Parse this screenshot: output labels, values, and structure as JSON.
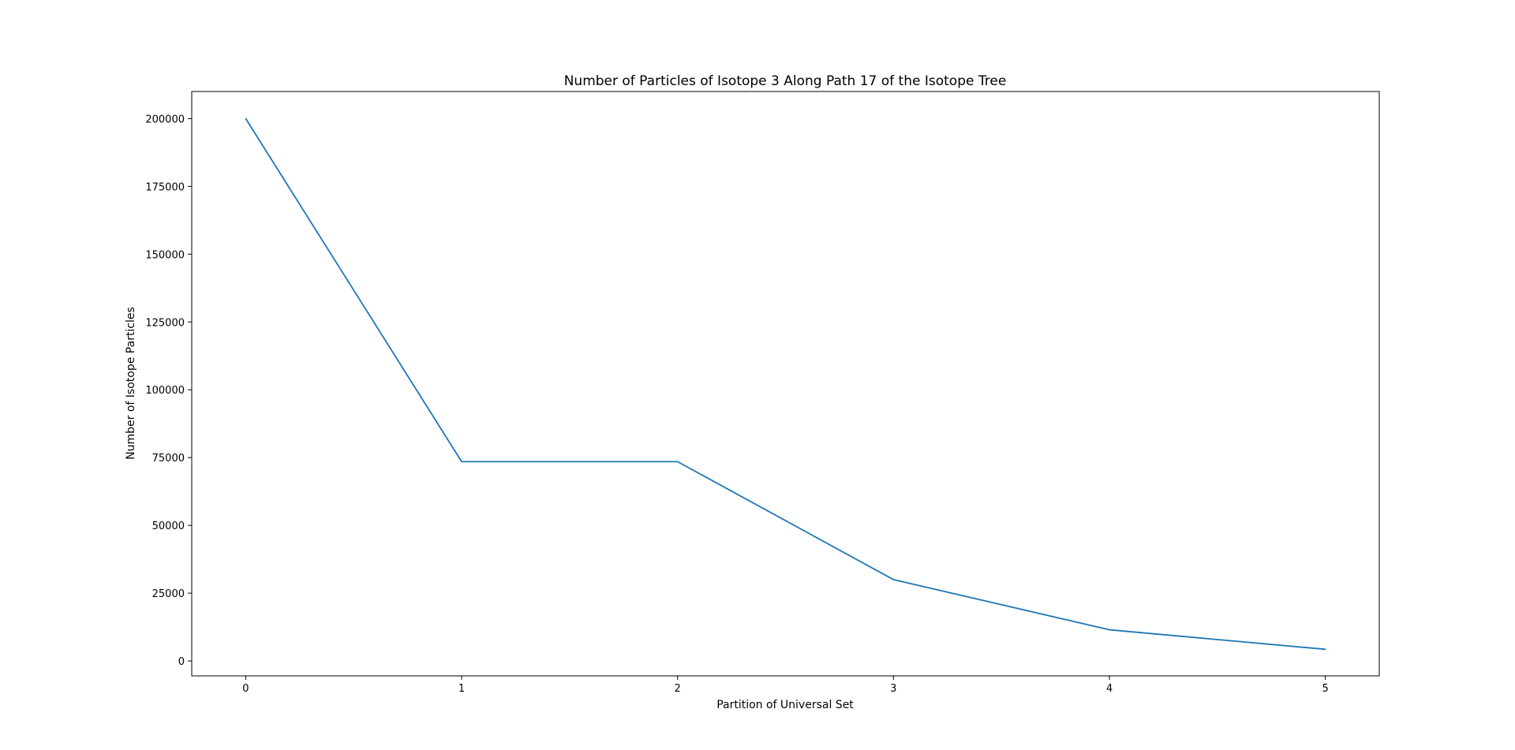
{
  "chart_data": {
    "type": "line",
    "title": "Number of Particles of Isotope 3 Along Path 17 of the Isotope Tree",
    "xlabel": "Partition of Universal Set",
    "ylabel": "Number of Isotope Particles",
    "x": [
      0,
      1,
      2,
      3,
      4,
      5
    ],
    "series": [
      {
        "values": [
          200000,
          73500,
          73500,
          30000,
          11500,
          4300
        ]
      }
    ],
    "xticks": [
      "0",
      "1",
      "2",
      "3",
      "4",
      "5"
    ],
    "yticks": [
      "0",
      "25000",
      "50000",
      "75000",
      "100000",
      "125000",
      "150000",
      "175000",
      "200000"
    ],
    "xlim": [
      -0.25,
      5.25
    ],
    "ylim": [
      -5500,
      210000
    ],
    "grid": false,
    "legend": "none",
    "colors": {
      "line": "#1f77b4",
      "axes": "#000000",
      "background": "#ffffff"
    }
  }
}
